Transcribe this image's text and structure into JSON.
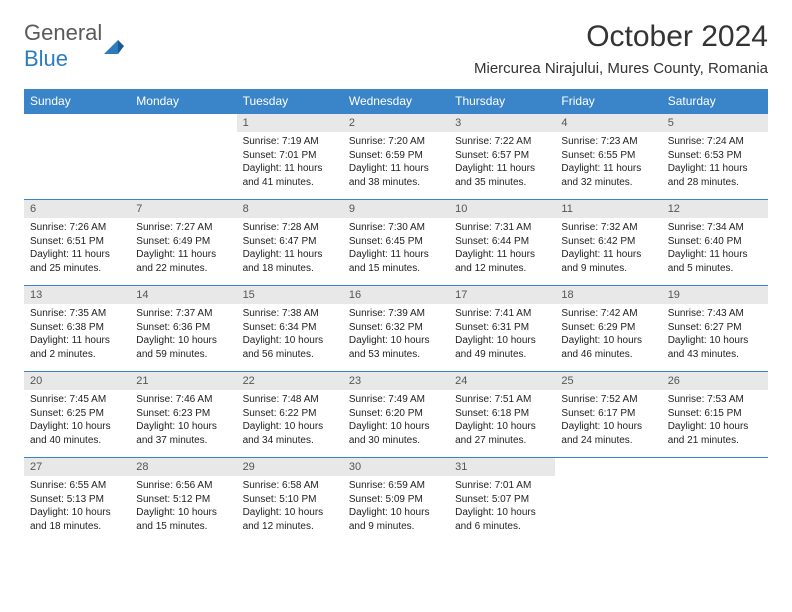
{
  "logo": {
    "text_a": "General",
    "text_b": "Blue",
    "color_a": "#5a5a5a",
    "color_b": "#2e7cc0"
  },
  "title": "October 2024",
  "location": "Miercurea Nirajului, Mures County, Romania",
  "theme": {
    "header_bg": "#3a85c9",
    "header_fg": "#ffffff",
    "daynum_bg": "#e8e8e8",
    "border": "#3a85c9"
  },
  "weekdays": [
    "Sunday",
    "Monday",
    "Tuesday",
    "Wednesday",
    "Thursday",
    "Friday",
    "Saturday"
  ],
  "weeks": [
    [
      null,
      null,
      {
        "n": "1",
        "sr": "Sunrise: 7:19 AM",
        "ss": "Sunset: 7:01 PM",
        "dl": "Daylight: 11 hours and 41 minutes."
      },
      {
        "n": "2",
        "sr": "Sunrise: 7:20 AM",
        "ss": "Sunset: 6:59 PM",
        "dl": "Daylight: 11 hours and 38 minutes."
      },
      {
        "n": "3",
        "sr": "Sunrise: 7:22 AM",
        "ss": "Sunset: 6:57 PM",
        "dl": "Daylight: 11 hours and 35 minutes."
      },
      {
        "n": "4",
        "sr": "Sunrise: 7:23 AM",
        "ss": "Sunset: 6:55 PM",
        "dl": "Daylight: 11 hours and 32 minutes."
      },
      {
        "n": "5",
        "sr": "Sunrise: 7:24 AM",
        "ss": "Sunset: 6:53 PM",
        "dl": "Daylight: 11 hours and 28 minutes."
      }
    ],
    [
      {
        "n": "6",
        "sr": "Sunrise: 7:26 AM",
        "ss": "Sunset: 6:51 PM",
        "dl": "Daylight: 11 hours and 25 minutes."
      },
      {
        "n": "7",
        "sr": "Sunrise: 7:27 AM",
        "ss": "Sunset: 6:49 PM",
        "dl": "Daylight: 11 hours and 22 minutes."
      },
      {
        "n": "8",
        "sr": "Sunrise: 7:28 AM",
        "ss": "Sunset: 6:47 PM",
        "dl": "Daylight: 11 hours and 18 minutes."
      },
      {
        "n": "9",
        "sr": "Sunrise: 7:30 AM",
        "ss": "Sunset: 6:45 PM",
        "dl": "Daylight: 11 hours and 15 minutes."
      },
      {
        "n": "10",
        "sr": "Sunrise: 7:31 AM",
        "ss": "Sunset: 6:44 PM",
        "dl": "Daylight: 11 hours and 12 minutes."
      },
      {
        "n": "11",
        "sr": "Sunrise: 7:32 AM",
        "ss": "Sunset: 6:42 PM",
        "dl": "Daylight: 11 hours and 9 minutes."
      },
      {
        "n": "12",
        "sr": "Sunrise: 7:34 AM",
        "ss": "Sunset: 6:40 PM",
        "dl": "Daylight: 11 hours and 5 minutes."
      }
    ],
    [
      {
        "n": "13",
        "sr": "Sunrise: 7:35 AM",
        "ss": "Sunset: 6:38 PM",
        "dl": "Daylight: 11 hours and 2 minutes."
      },
      {
        "n": "14",
        "sr": "Sunrise: 7:37 AM",
        "ss": "Sunset: 6:36 PM",
        "dl": "Daylight: 10 hours and 59 minutes."
      },
      {
        "n": "15",
        "sr": "Sunrise: 7:38 AM",
        "ss": "Sunset: 6:34 PM",
        "dl": "Daylight: 10 hours and 56 minutes."
      },
      {
        "n": "16",
        "sr": "Sunrise: 7:39 AM",
        "ss": "Sunset: 6:32 PM",
        "dl": "Daylight: 10 hours and 53 minutes."
      },
      {
        "n": "17",
        "sr": "Sunrise: 7:41 AM",
        "ss": "Sunset: 6:31 PM",
        "dl": "Daylight: 10 hours and 49 minutes."
      },
      {
        "n": "18",
        "sr": "Sunrise: 7:42 AM",
        "ss": "Sunset: 6:29 PM",
        "dl": "Daylight: 10 hours and 46 minutes."
      },
      {
        "n": "19",
        "sr": "Sunrise: 7:43 AM",
        "ss": "Sunset: 6:27 PM",
        "dl": "Daylight: 10 hours and 43 minutes."
      }
    ],
    [
      {
        "n": "20",
        "sr": "Sunrise: 7:45 AM",
        "ss": "Sunset: 6:25 PM",
        "dl": "Daylight: 10 hours and 40 minutes."
      },
      {
        "n": "21",
        "sr": "Sunrise: 7:46 AM",
        "ss": "Sunset: 6:23 PM",
        "dl": "Daylight: 10 hours and 37 minutes."
      },
      {
        "n": "22",
        "sr": "Sunrise: 7:48 AM",
        "ss": "Sunset: 6:22 PM",
        "dl": "Daylight: 10 hours and 34 minutes."
      },
      {
        "n": "23",
        "sr": "Sunrise: 7:49 AM",
        "ss": "Sunset: 6:20 PM",
        "dl": "Daylight: 10 hours and 30 minutes."
      },
      {
        "n": "24",
        "sr": "Sunrise: 7:51 AM",
        "ss": "Sunset: 6:18 PM",
        "dl": "Daylight: 10 hours and 27 minutes."
      },
      {
        "n": "25",
        "sr": "Sunrise: 7:52 AM",
        "ss": "Sunset: 6:17 PM",
        "dl": "Daylight: 10 hours and 24 minutes."
      },
      {
        "n": "26",
        "sr": "Sunrise: 7:53 AM",
        "ss": "Sunset: 6:15 PM",
        "dl": "Daylight: 10 hours and 21 minutes."
      }
    ],
    [
      {
        "n": "27",
        "sr": "Sunrise: 6:55 AM",
        "ss": "Sunset: 5:13 PM",
        "dl": "Daylight: 10 hours and 18 minutes."
      },
      {
        "n": "28",
        "sr": "Sunrise: 6:56 AM",
        "ss": "Sunset: 5:12 PM",
        "dl": "Daylight: 10 hours and 15 minutes."
      },
      {
        "n": "29",
        "sr": "Sunrise: 6:58 AM",
        "ss": "Sunset: 5:10 PM",
        "dl": "Daylight: 10 hours and 12 minutes."
      },
      {
        "n": "30",
        "sr": "Sunrise: 6:59 AM",
        "ss": "Sunset: 5:09 PM",
        "dl": "Daylight: 10 hours and 9 minutes."
      },
      {
        "n": "31",
        "sr": "Sunrise: 7:01 AM",
        "ss": "Sunset: 5:07 PM",
        "dl": "Daylight: 10 hours and 6 minutes."
      },
      null,
      null
    ]
  ]
}
